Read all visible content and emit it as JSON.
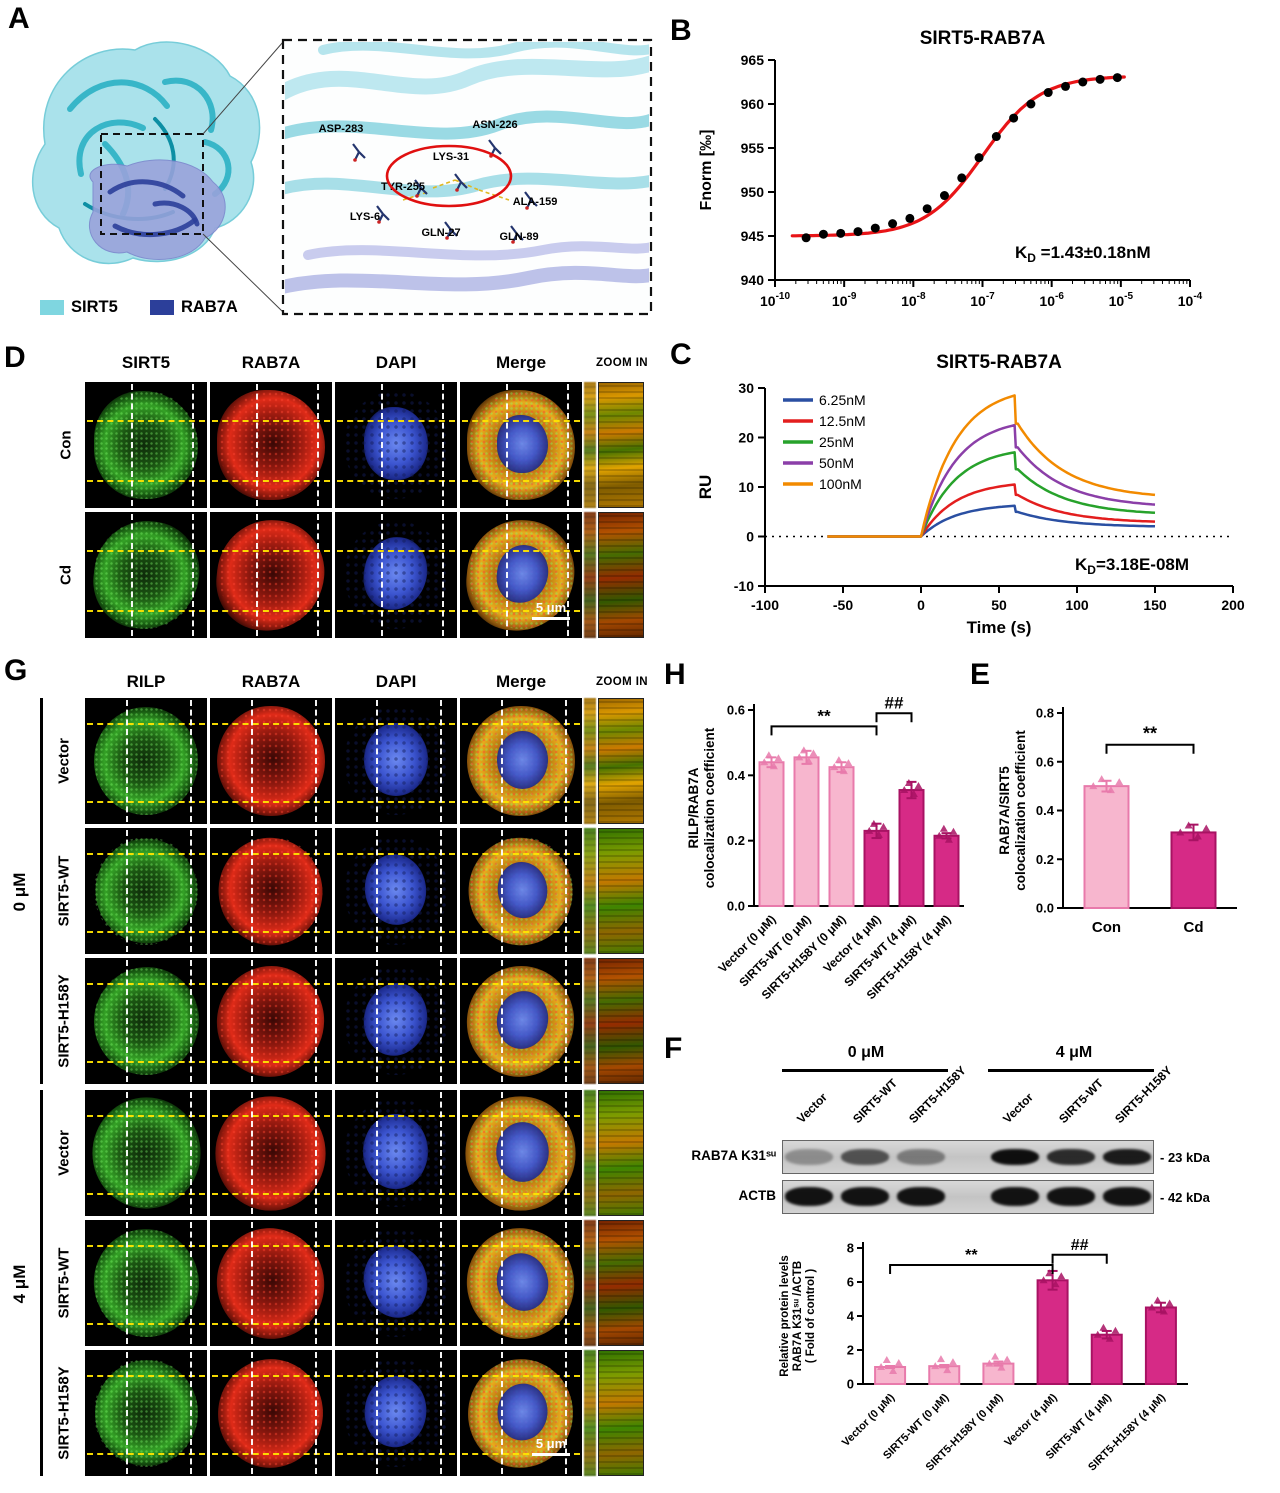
{
  "panels": {
    "A": {
      "label": "A",
      "legend": [
        {
          "name": "SIRT5",
          "color": "#7fd6e0"
        },
        {
          "name": "RAB7A",
          "color": "#2c3f9a"
        }
      ],
      "residues": [
        "ASP-283",
        "ASN-226",
        "LYS-31",
        "TYR-255",
        "ALA-159",
        "LYS-6",
        "GLN-27",
        "GLN-89"
      ]
    },
    "B": {
      "label": "B"
    },
    "C": {
      "label": "C"
    },
    "D": {
      "label": "D",
      "column_headers": [
        "SIRT5",
        "RAB7A",
        "DAPI",
        "Merge"
      ],
      "zoom_header": "ZOOM IN",
      "row_labels": [
        "Con",
        "Cd"
      ],
      "scale_bar": "5 μm"
    },
    "E": {
      "label": "E"
    },
    "F": {
      "label": "F",
      "group_labels": [
        "0 μM",
        "4 μM"
      ],
      "lane_labels": [
        "Vector",
        "SIRT5-WT",
        "SIRT5-H158Y",
        "Vector",
        "SIRT5-WT",
        "SIRT5-H158Y"
      ],
      "blots": [
        {
          "name": "RAB7A K31ˢᵘ",
          "size": "- 23 kDa",
          "intensities": [
            0.3,
            0.62,
            0.4,
            0.97,
            0.82,
            0.9
          ]
        },
        {
          "name": "ACTB",
          "size": "- 42 kDa",
          "intensities": [
            0.95,
            0.95,
            0.95,
            0.95,
            0.95,
            0.95
          ]
        }
      ]
    },
    "G": {
      "label": "G",
      "column_headers": [
        "RILP",
        "RAB7A",
        "DAPI",
        "Merge"
      ],
      "zoom_header": "ZOOM IN",
      "group_labels": [
        "0 μM",
        "4 μM"
      ],
      "row_labels": [
        "Vector",
        "SIRT5-WT",
        "SIRT5-H158Y",
        "Vector",
        "SIRT5-WT",
        "SIRT5-H158Y"
      ],
      "scale_bar": "5 μm"
    },
    "H": {
      "label": "H"
    }
  },
  "chart_data": [
    {
      "id": "B",
      "type": "scatter",
      "title": "SIRT5-RAB7A",
      "xlabel": "",
      "ylabel": "Fnorm [‰]",
      "x_scale": "log",
      "xlim_log": [
        -10,
        -4
      ],
      "ylim": [
        940,
        965
      ],
      "yticks": [
        940,
        945,
        950,
        955,
        960,
        965
      ],
      "xtick_exponents": [
        -10,
        -9,
        -8,
        -7,
        -6,
        -5,
        -4
      ],
      "kd_annotation": {
        "pre": "K",
        "sub": "D",
        "post": " =1.43±0.18nM"
      },
      "fit": {
        "bottom": 945.0,
        "top": 963.2,
        "log_ec50": -7.0,
        "hill": 1.05,
        "color": "#e81417"
      },
      "points": {
        "logx": [
          -9.55,
          -9.3,
          -9.05,
          -8.8,
          -8.55,
          -8.3,
          -8.05,
          -7.8,
          -7.55,
          -7.3,
          -7.05,
          -6.8,
          -6.55,
          -6.3,
          -6.05,
          -5.8,
          -5.55,
          -5.3,
          -5.05
        ],
        "y": [
          944.8,
          945.2,
          945.3,
          945.5,
          945.9,
          946.4,
          947.0,
          948.1,
          949.6,
          951.6,
          953.9,
          956.3,
          958.4,
          960.0,
          961.3,
          962.0,
          962.5,
          962.8,
          963.0
        ]
      }
    },
    {
      "id": "C",
      "type": "line",
      "title": "SIRT5-RAB7A",
      "xlabel": "Time (s)",
      "ylabel": "RU",
      "xlim": [
        -100,
        200
      ],
      "ylim": [
        -10,
        30
      ],
      "xticks": [
        -100,
        -50,
        0,
        50,
        100,
        150,
        200
      ],
      "yticks": [
        -10,
        0,
        10,
        20,
        30
      ],
      "kd_annotation": {
        "pre": "K",
        "sub": "D",
        "post": "=3.18E-08M"
      },
      "baseline_start": -60,
      "assoc_end": 60,
      "diss_end": 150,
      "series": [
        {
          "name": "6.25nM",
          "color": "#2a4fa2",
          "peak": 6.2,
          "end": 1.9
        },
        {
          "name": "12.5nM",
          "color": "#e31e1e",
          "peak": 10.5,
          "end": 2.7
        },
        {
          "name": "25nM",
          "color": "#27a22b",
          "peak": 17.0,
          "end": 4.3
        },
        {
          "name": "50nM",
          "color": "#8b3fa8",
          "peak": 22.5,
          "end": 5.8
        },
        {
          "name": "100nM",
          "color": "#f28a00",
          "peak": 28.5,
          "end": 7.6
        }
      ]
    },
    {
      "id": "E",
      "type": "bar",
      "ylabel": "RAB7A/SIRT5\ncolocalization coefficient",
      "categories": [
        "Con",
        "Cd"
      ],
      "values": [
        0.5,
        0.31
      ],
      "errors": [
        0.022,
        0.032
      ],
      "bar_colors": [
        "#f7b6ce",
        "#d62a86"
      ],
      "bar_strokes": [
        "#e87aab",
        "#a81263"
      ],
      "ylim": [
        0,
        0.8
      ],
      "yticks": [
        "0.0",
        "0.2",
        "0.4",
        "0.6",
        "0.8"
      ],
      "significance": [
        {
          "from": 0,
          "to": 1,
          "label": "**",
          "y": 0.67
        }
      ]
    },
    {
      "id": "H",
      "type": "bar",
      "ylabel": "RILP/RAB7A\ncolocalization coefficient",
      "categories": [
        "Vector (0 μM)",
        "SIRT5-WT (0 μM)",
        "SIRT5-H158Y (0 μM)",
        "Vector (4 μM)",
        "SIRT5-WT (4 μM)",
        "SIRT5-H158Y (4 μM)"
      ],
      "values": [
        0.44,
        0.455,
        0.425,
        0.23,
        0.355,
        0.215
      ],
      "errors": [
        0.015,
        0.02,
        0.015,
        0.022,
        0.025,
        0.008
      ],
      "bar_colors": [
        "#f7b6ce",
        "#f7b6ce",
        "#f7b6ce",
        "#d62a86",
        "#d62a86",
        "#d62a86"
      ],
      "bar_strokes": [
        "#e87aab",
        "#e87aab",
        "#e87aab",
        "#a81263",
        "#a81263",
        "#a81263"
      ],
      "ylim": [
        0,
        0.6
      ],
      "yticks": [
        "0.0",
        "0.2",
        "0.4",
        "0.6"
      ],
      "significance": [
        {
          "from": 0,
          "to": 3,
          "label": "**",
          "y": 0.55
        },
        {
          "from": 3,
          "to": 4,
          "label": "##",
          "y": 0.59
        }
      ]
    },
    {
      "id": "F",
      "type": "bar",
      "ylabel": "Relative protein levels\nRAB7A K31ˢᵘ /ACTB\n( Fold of control )",
      "categories": [
        "Vector (0 μM)",
        "SIRT5-WT (0 μM)",
        "SIRT5-H158Y (0 μM)",
        "Vector (4 μM)",
        "SIRT5-WT (4 μM)",
        "SIRT5-H158Y (4 μM)"
      ],
      "values": [
        1.0,
        1.05,
        1.2,
        6.1,
        2.9,
        4.5
      ],
      "errors": [
        0.06,
        0.07,
        0.12,
        0.55,
        0.22,
        0.28
      ],
      "bar_colors": [
        "#f7b6ce",
        "#f7b6ce",
        "#f7b6ce",
        "#d62a86",
        "#d62a86",
        "#d62a86"
      ],
      "bar_strokes": [
        "#e87aab",
        "#e87aab",
        "#e87aab",
        "#a81263",
        "#a81263",
        "#a81263"
      ],
      "ylim": [
        0,
        8
      ],
      "yticks": [
        "0",
        "2",
        "4",
        "6",
        "8"
      ],
      "significance": [
        {
          "from": 0,
          "to": 3,
          "label": "**",
          "y": 7.0
        },
        {
          "from": 3,
          "to": 4,
          "label": "##",
          "y": 7.6
        }
      ]
    }
  ]
}
